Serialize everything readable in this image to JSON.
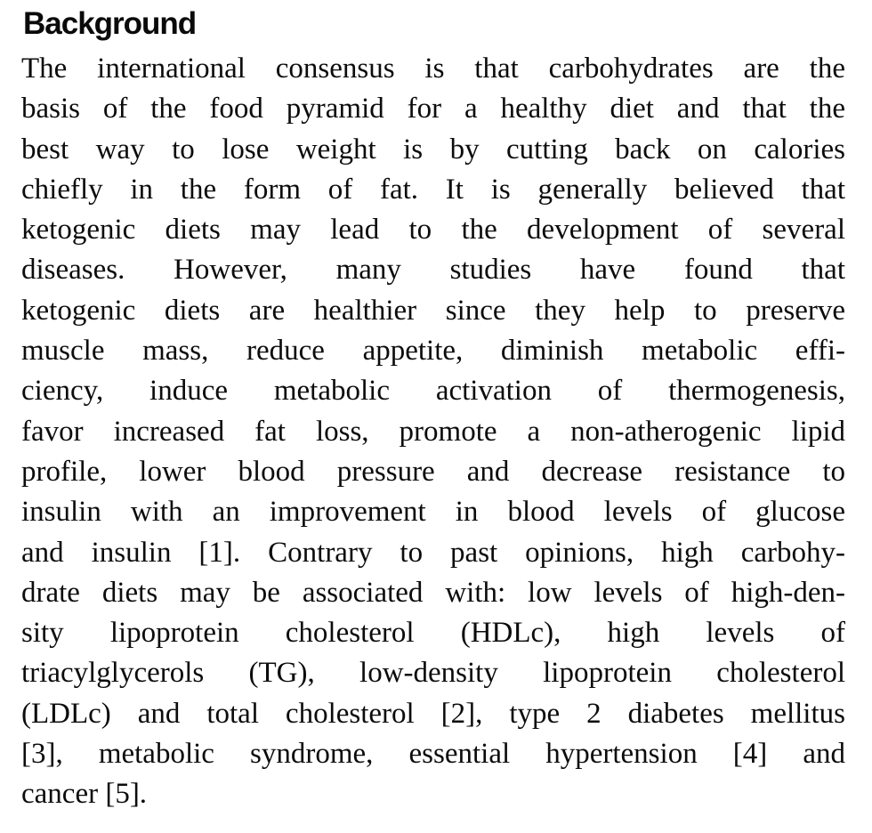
{
  "heading": "Background",
  "paragraph": {
    "lines": [
      "The international consensus is that carbohydrates are the",
      "basis of the food pyramid for a healthy diet and that the",
      "best way to lose weight is by cutting back on calories",
      "chiefly in the form of fat. It is generally believed that",
      "ketogenic diets may lead to the development of several",
      "diseases. However, many studies have found that",
      "ketogenic diets are healthier since they help to preserve",
      "muscle mass, reduce appetite, diminish metabolic effi-",
      "ciency, induce metabolic activation of thermogenesis,",
      "favor increased fat loss, promote a non-atherogenic lipid",
      "profile, lower blood pressure and decrease resistance to",
      "insulin with an improvement in blood levels of glucose",
      "and insulin [1]. Contrary to past opinions, high carbohy-",
      "drate diets may be associated with: low levels of high-den-",
      "sity lipoprotein cholesterol (HDLc), high levels of",
      "triacylglycerols (TG), low-density lipoprotein cholesterol",
      "(LDLc) and total cholesterol [2], type 2 diabetes mellitus",
      "[3], metabolic syndrome, essential hypertension [4] and",
      "cancer [5]."
    ],
    "citations": [
      "[1]",
      "[2]",
      "[3]",
      "[4]",
      "[5]"
    ]
  },
  "colors": {
    "text": "#0c0c0c",
    "background": "#ffffff"
  }
}
